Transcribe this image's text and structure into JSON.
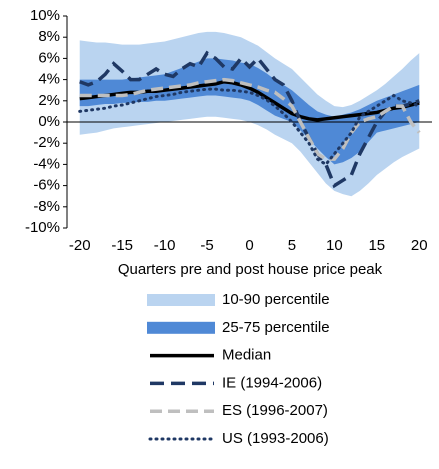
{
  "chart_data": {
    "type": "line",
    "xlabel": "Quarters pre and post house price peak",
    "x": [
      -20,
      -19,
      -18,
      -17,
      -16,
      -15,
      -14,
      -13,
      -12,
      -11,
      -10,
      -9,
      -8,
      -7,
      -6,
      -5,
      -4,
      -3,
      -2,
      -1,
      0,
      1,
      2,
      3,
      4,
      5,
      6,
      7,
      8,
      9,
      10,
      11,
      12,
      13,
      14,
      15,
      16,
      17,
      18,
      19,
      20
    ],
    "xlim": [
      -21.5,
      21.5
    ],
    "xticks": [
      -20,
      -15,
      -10,
      -5,
      0,
      5,
      10,
      15,
      20
    ],
    "ylim": [
      -10,
      10
    ],
    "yticks": [
      {
        "value": 10,
        "label": "10%"
      },
      {
        "value": 8,
        "label": "8%"
      },
      {
        "value": 6,
        "label": "6%"
      },
      {
        "value": 4,
        "label": "4%"
      },
      {
        "value": 2,
        "label": "2%"
      },
      {
        "value": 0,
        "label": "0%"
      },
      {
        "value": -2,
        "label": "-2%"
      },
      {
        "value": -4,
        "label": "-4%"
      },
      {
        "value": -6,
        "label": "-6%"
      },
      {
        "value": -8,
        "label": "-8%"
      },
      {
        "value": -10,
        "label": "-10%"
      }
    ],
    "series": [
      {
        "name": "10-90 percentile",
        "color": "#bad4f0",
        "high": [
          7.7,
          7.6,
          7.5,
          7.5,
          7.4,
          7.3,
          7.3,
          7.3,
          7.4,
          7.5,
          7.6,
          7.8,
          8.0,
          8.2,
          8.4,
          8.5,
          8.5,
          8.4,
          8.2,
          8.0,
          7.6,
          7.2,
          6.6,
          6.0,
          5.5,
          5.0,
          4.2,
          3.4,
          2.6,
          2.0,
          1.5,
          1.4,
          1.6,
          2.0,
          2.5,
          3.0,
          3.6,
          4.3,
          5.0,
          5.8,
          6.5
        ],
        "low": [
          -1.2,
          -1.1,
          -1.0,
          -0.8,
          -0.6,
          -0.5,
          -0.4,
          -0.3,
          -0.2,
          -0.1,
          0,
          0.1,
          0.2,
          0.3,
          0.4,
          0.5,
          0.5,
          0.4,
          0.3,
          0.2,
          0,
          -0.3,
          -0.7,
          -1.2,
          -1.6,
          -2,
          -2.8,
          -3.8,
          -4.8,
          -5.8,
          -6.5,
          -6.8,
          -7,
          -6.5,
          -5.8,
          -5,
          -4.4,
          -3.8,
          -3.3,
          -2.9,
          -2.5
        ]
      },
      {
        "name": "25-75 percentile",
        "color": "#4f89d6",
        "high": [
          4,
          4,
          4,
          4,
          4,
          4,
          4.1,
          4.2,
          4.3,
          4.4,
          4.5,
          4.8,
          5.1,
          5.4,
          5.7,
          6,
          6,
          5.9,
          5.8,
          5.6,
          5.5,
          5.1,
          4.6,
          4,
          3.5,
          3,
          2.3,
          1.6,
          1,
          0.7,
          0.5,
          0.7,
          0.9,
          1.2,
          1.6,
          2,
          2.3,
          2.6,
          2.9,
          3.2,
          3.5
        ],
        "low": [
          1.5,
          1.5,
          1.6,
          1.7,
          1.7,
          1.8,
          1.8,
          1.9,
          1.9,
          2,
          2,
          2.1,
          2.2,
          2.3,
          2.4,
          2.5,
          2.5,
          2.4,
          2.3,
          2.2,
          2,
          1.6,
          1.1,
          0.6,
          0.3,
          0,
          -0.8,
          -1.6,
          -2.5,
          -3.3,
          -4,
          -3.8,
          -3.4,
          -2.8,
          -1.9,
          -1,
          -0.8,
          -0.6,
          -0.4,
          -0.2,
          0
        ]
      },
      {
        "name": "Median",
        "color": "#000000",
        "style": "solid",
        "values": [
          2.2,
          2.3,
          2.4,
          2.5,
          2.6,
          2.7,
          2.8,
          2.8,
          2.9,
          2.9,
          3,
          3.1,
          3.2,
          3.3,
          3.4,
          3.5,
          3.6,
          3.8,
          3.7,
          3.5,
          3.2,
          2.8,
          2.3,
          1.8,
          1.3,
          0.8,
          0.5,
          0.3,
          0.2,
          0.3,
          0.4,
          0.5,
          0.6,
          0.7,
          0.8,
          0.9,
          1.1,
          1.3,
          1.4,
          1.6,
          1.8
        ]
      },
      {
        "name": "IE (1994-2006)",
        "color": "#1f3864",
        "style": "dashed",
        "values": [
          3.8,
          3.5,
          3.8,
          4.5,
          5.5,
          4.8,
          4,
          4,
          4.5,
          5,
          4.5,
          4.3,
          5,
          5.5,
          5.2,
          6.5,
          6,
          5.2,
          5,
          6,
          5.2,
          6,
          5,
          4,
          3.5,
          2,
          0,
          -1.5,
          -3,
          -4,
          -6,
          -5.5,
          -5,
          -3,
          -1.5,
          0,
          1,
          1.5,
          1.5,
          1.7,
          2
        ]
      },
      {
        "name": "ES (1996-2007)",
        "color": "#bfbfbf",
        "style": "dashed",
        "values": [
          2.5,
          2.5,
          2.5,
          2.5,
          2.5,
          2.5,
          2.6,
          2.8,
          3,
          3.1,
          3.2,
          3.3,
          3.4,
          3.5,
          3.7,
          3.8,
          3.9,
          4,
          3.9,
          3.7,
          3.5,
          3.3,
          3,
          2.8,
          2.2,
          1.5,
          0,
          -1.5,
          -3,
          -3.5,
          -3.5,
          -2.5,
          -1,
          0,
          0.3,
          0.5,
          1,
          1.5,
          1.5,
          0,
          -1
        ]
      },
      {
        "name": "US (1993-2006)",
        "color": "#1f3864",
        "style": "dotted",
        "values": [
          1,
          1.1,
          1.2,
          1.3,
          1.5,
          1.6,
          1.8,
          2,
          2.2,
          2.4,
          2.5,
          2.6,
          2.8,
          2.9,
          3,
          3.1,
          3.1,
          3,
          3,
          2.9,
          2.8,
          2.5,
          2.1,
          1.5,
          0.8,
          0,
          -1,
          -2,
          -3.5,
          -4,
          -3,
          -2,
          -1,
          0.5,
          1,
          1.5,
          2,
          2.5,
          2,
          1.8,
          1.5
        ]
      }
    ]
  }
}
